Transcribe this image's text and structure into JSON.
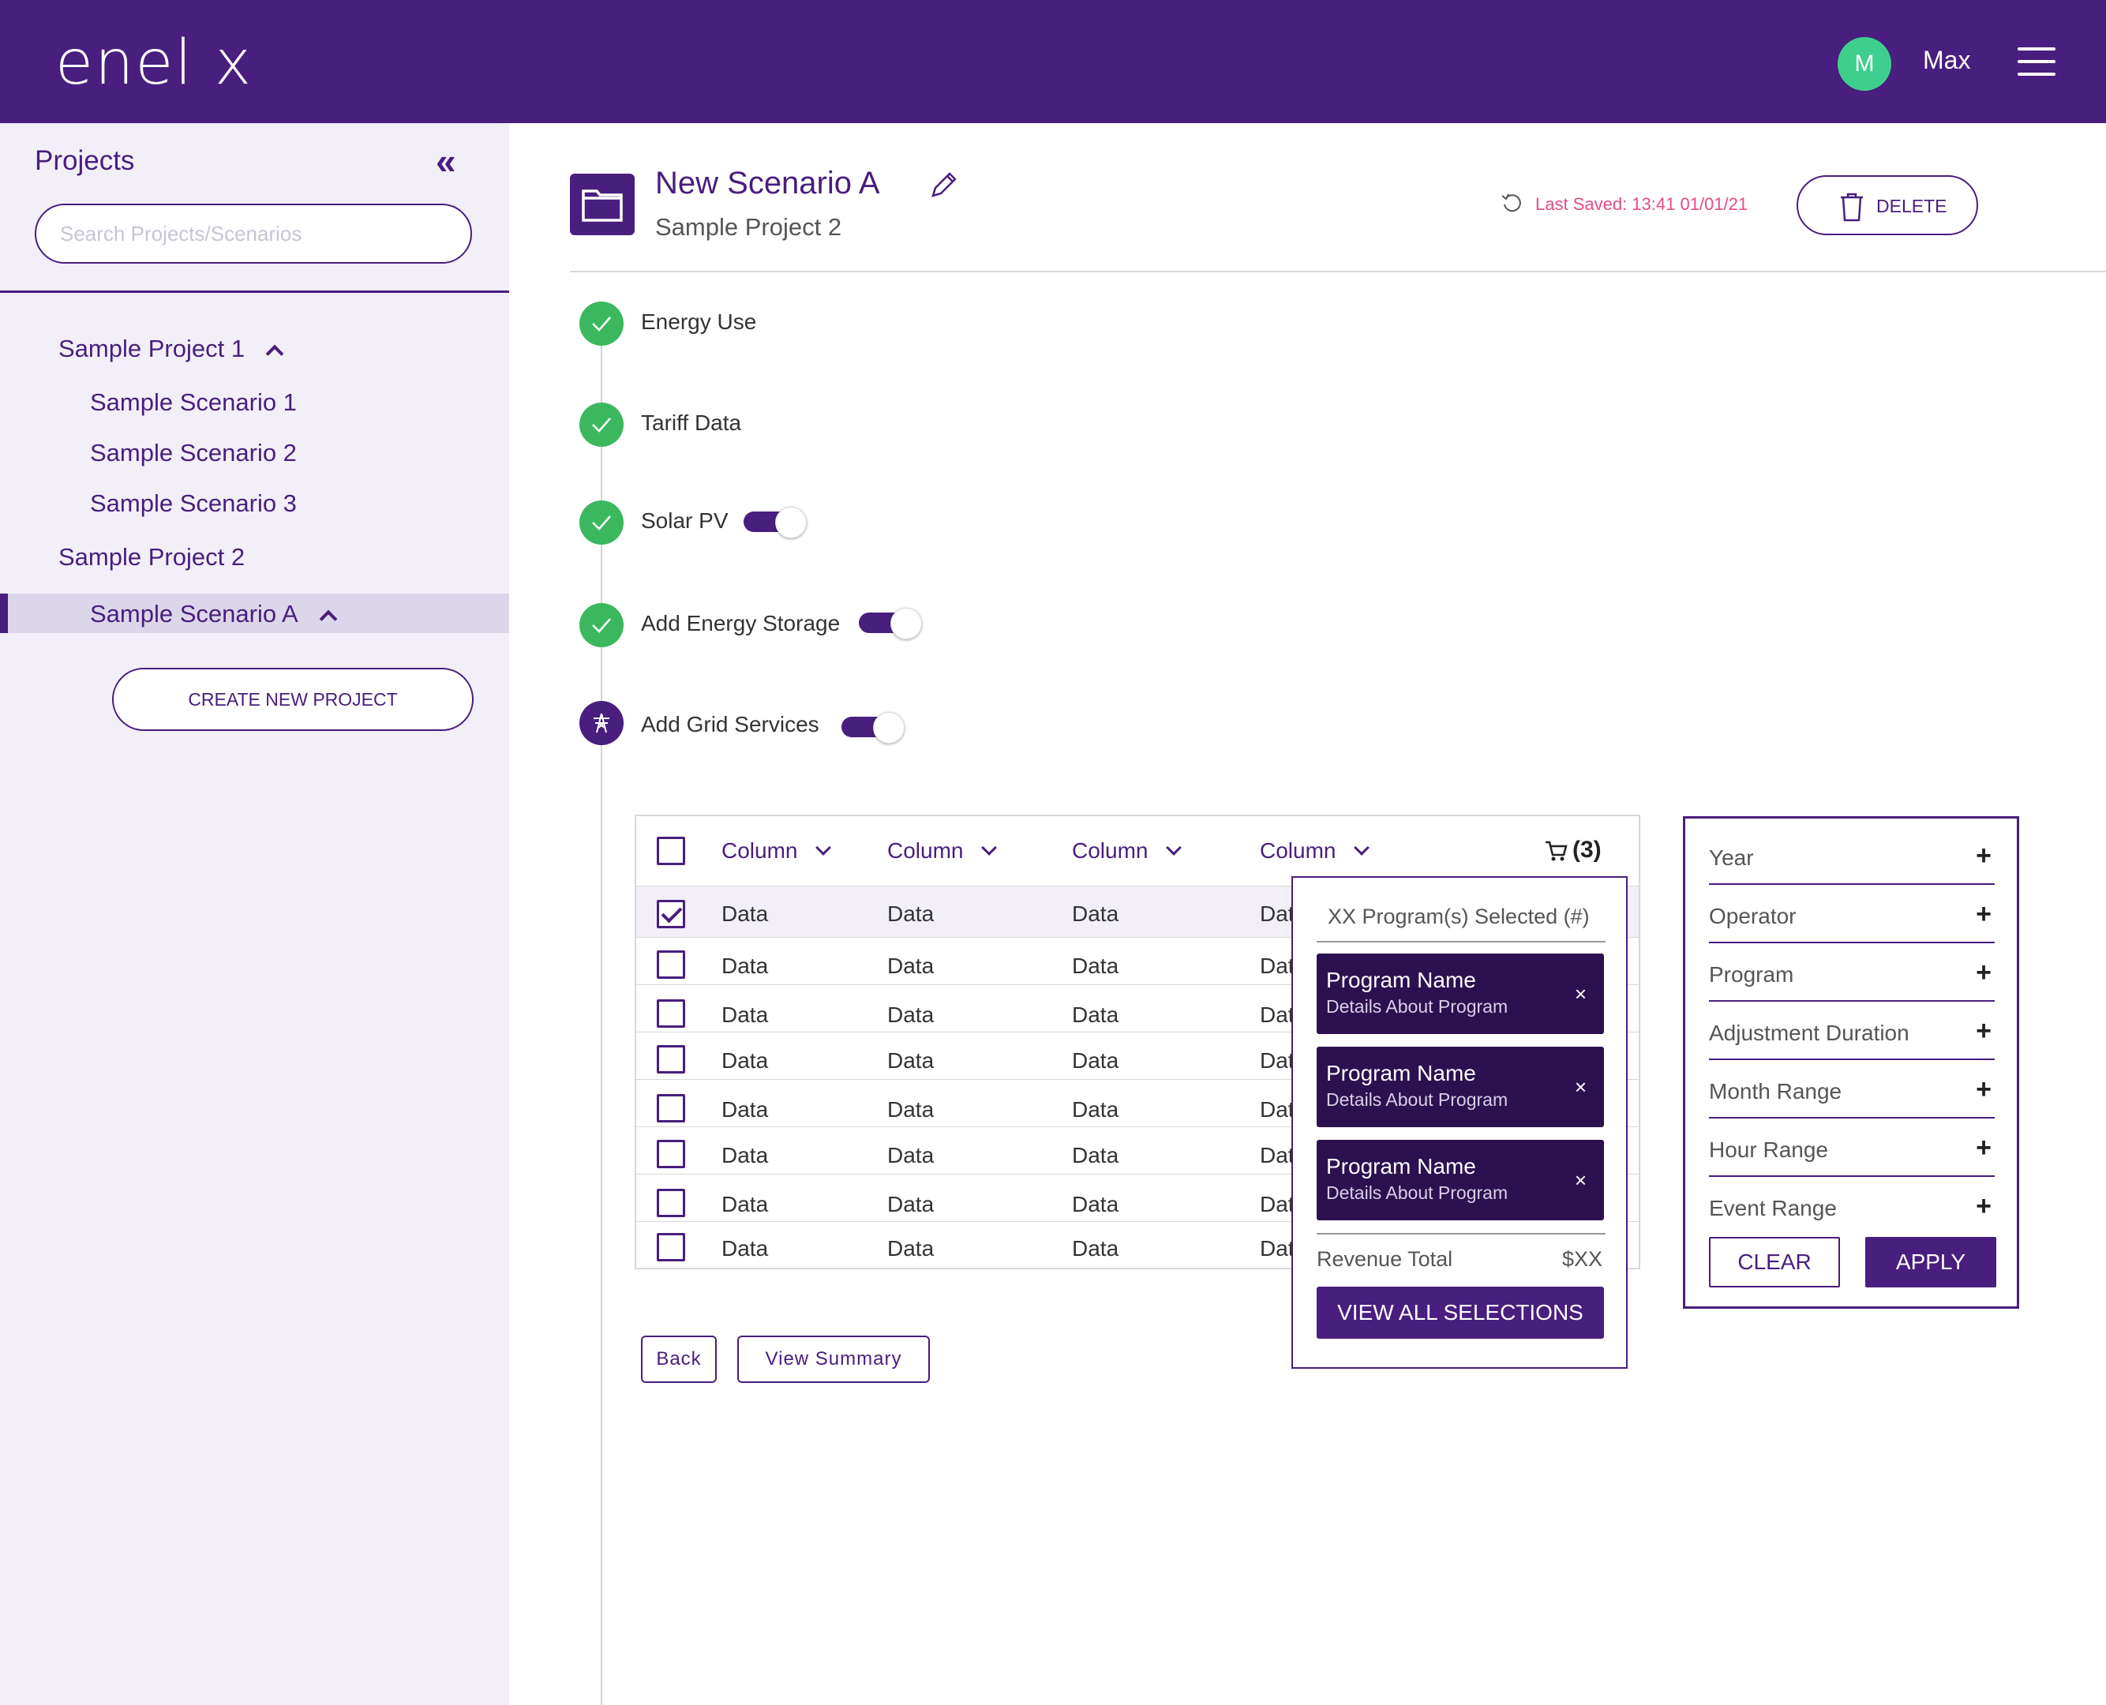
{
  "app": {
    "logo_text": "enel x",
    "user_initial": "M",
    "user_name": "Max",
    "brand_color": "#481e7e",
    "avatar_color": "#3ecf8e"
  },
  "sidebar": {
    "title": "Projects",
    "search_placeholder": "Search Projects/Scenarios",
    "projects": [
      {
        "name": "Sample Project 1",
        "scenarios": [
          "Sample Scenario 1",
          "Sample Scenario 2",
          "Sample Scenario 3"
        ]
      },
      {
        "name": "Sample Project 2",
        "scenarios": [
          "Sample Scenario A"
        ]
      }
    ],
    "active_scenario": "Sample Scenario A",
    "create_button": "CREATE NEW PROJECT"
  },
  "header": {
    "scenario_title": "New Scenario A",
    "project_name": "Sample Project 2",
    "last_saved": "Last Saved: 13:41 01/01/21",
    "delete_label": "DELETE"
  },
  "steps": [
    {
      "label": "Energy Use",
      "status": "complete",
      "toggle": null
    },
    {
      "label": "Tariff Data",
      "status": "complete",
      "toggle": null
    },
    {
      "label": "Solar PV",
      "status": "complete",
      "toggle": "on"
    },
    {
      "label": "Add Energy Storage",
      "status": "complete",
      "toggle": "on"
    },
    {
      "label": "Add Grid Services",
      "status": "current",
      "toggle": "on"
    }
  ],
  "table": {
    "columns": [
      "Column",
      "Column",
      "Column",
      "Column"
    ],
    "cart_count": "(3)",
    "rows": [
      {
        "checked": true,
        "cells": [
          "Data",
          "Data",
          "Data",
          "Dat"
        ]
      },
      {
        "checked": false,
        "cells": [
          "Data",
          "Data",
          "Data",
          "Dat"
        ]
      },
      {
        "checked": false,
        "cells": [
          "Data",
          "Data",
          "Data",
          "Dat"
        ]
      },
      {
        "checked": false,
        "cells": [
          "Data",
          "Data",
          "Data",
          "Dat"
        ]
      },
      {
        "checked": false,
        "cells": [
          "Data",
          "Data",
          "Data",
          "Dat"
        ]
      },
      {
        "checked": false,
        "cells": [
          "Data",
          "Data",
          "Data",
          "Dat"
        ]
      },
      {
        "checked": false,
        "cells": [
          "Data",
          "Data",
          "Data",
          "Dat"
        ]
      },
      {
        "checked": false,
        "cells": [
          "Data",
          "Data",
          "Data",
          "Dat"
        ]
      }
    ]
  },
  "cart_popup": {
    "title": "XX Program(s) Selected (#)",
    "programs": [
      {
        "name": "Program Name",
        "details": "Details About Program"
      },
      {
        "name": "Program Name",
        "details": "Details About Program"
      },
      {
        "name": "Program Name",
        "details": "Details About Program"
      }
    ],
    "remove_glyph": "×",
    "revenue_label": "Revenue Total",
    "revenue_value": "$XX",
    "view_all_label": "VIEW ALL SELECTIONS"
  },
  "actions": {
    "back_label": "Back",
    "summary_label": "View Summary"
  },
  "filters": {
    "items": [
      "Year",
      "Operator",
      "Program",
      "Adjustment Duration",
      "Month Range",
      "Hour Range",
      "Event Range"
    ],
    "expand_glyph": "+",
    "clear_label": "CLEAR",
    "apply_label": "APPLY"
  }
}
